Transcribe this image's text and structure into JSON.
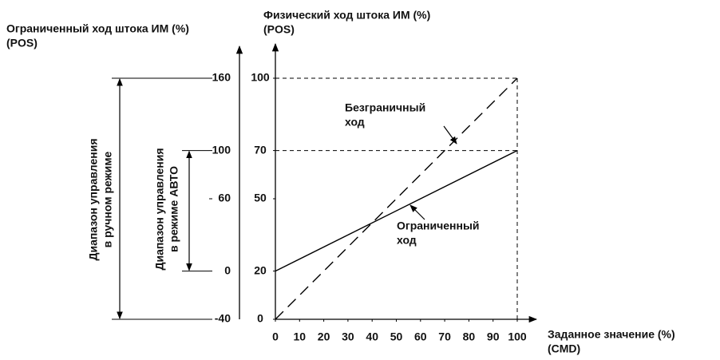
{
  "chart_data": {
    "type": "line",
    "y2_label": [
      "Ограниченный ход штока ИМ (%)",
      "(POS)"
    ],
    "y_label": [
      "Физический ход штока ИМ (%)",
      "(POS)"
    ],
    "x_label": [
      "Заданное значение (%)",
      "(CMD)"
    ],
    "x": [
      0,
      100
    ],
    "xlim": [
      0,
      100
    ],
    "xticks": [
      0,
      10,
      20,
      30,
      40,
      50,
      60,
      70,
      80,
      90,
      100
    ],
    "ylim": [
      0,
      100
    ],
    "yticks": [
      0,
      20,
      50,
      70,
      100
    ],
    "y2lim": [
      -40,
      160
    ],
    "y2ticks": [
      -40,
      0,
      60,
      100,
      160
    ],
    "series": [
      {
        "name": [
          "Безграничный",
          "ход"
        ],
        "color": "#000000",
        "line_style": "dashed",
        "values": [
          0,
          100
        ]
      },
      {
        "name": [
          "Ограниченный",
          "ход"
        ],
        "color": "#000000",
        "line_style": "solid",
        "values": [
          20,
          70
        ]
      }
    ],
    "range_labels": [
      [
        "Диапазон управления",
        "в ручном режиме"
      ],
      [
        "Диапазон управления",
        "в режиме АВТО"
      ]
    ]
  }
}
